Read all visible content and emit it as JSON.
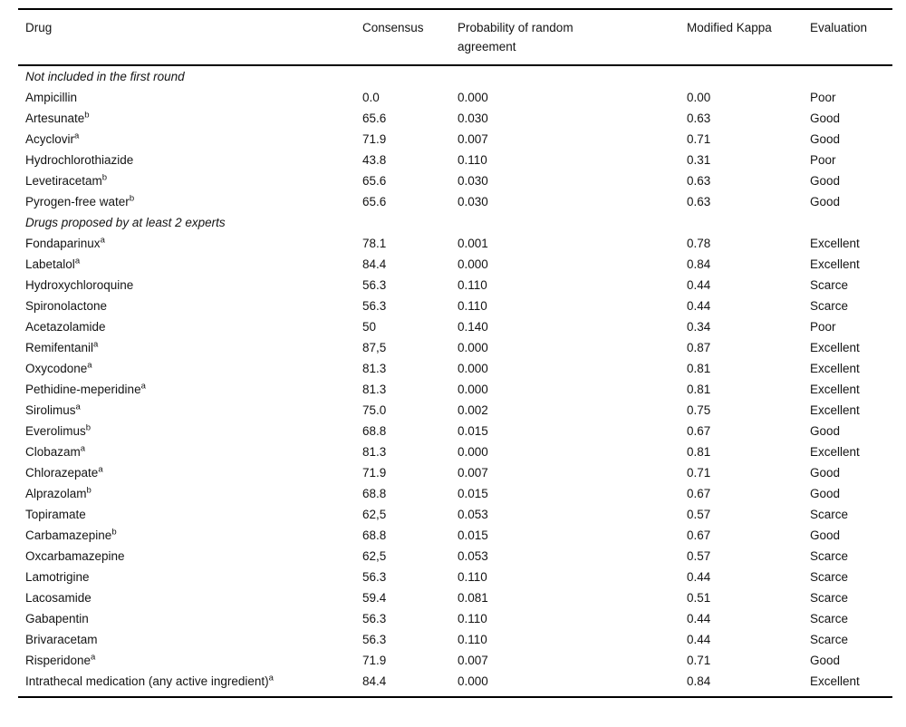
{
  "table": {
    "headers": [
      "Drug",
      "Consensus",
      "Probability of random agreement",
      "Modified Kappa",
      "Evaluation"
    ],
    "sections": [
      {
        "label": "Not included in the first round",
        "rows": [
          {
            "drug": "Ampicillin",
            "sup": "",
            "consensus": "0.0",
            "probability": "0.000",
            "kappa": "0.00",
            "evaluation": "Poor"
          },
          {
            "drug": "Artesunate",
            "sup": "b",
            "consensus": "65.6",
            "probability": "0.030",
            "kappa": "0.63",
            "evaluation": "Good"
          },
          {
            "drug": "Acyclovir",
            "sup": "a",
            "consensus": "71.9",
            "probability": "0.007",
            "kappa": "0.71",
            "evaluation": "Good"
          },
          {
            "drug": "Hydrochlorothiazide",
            "sup": "",
            "consensus": "43.8",
            "probability": "0.110",
            "kappa": "0.31",
            "evaluation": "Poor"
          },
          {
            "drug": "Levetiracetam",
            "sup": "b",
            "consensus": "65.6",
            "probability": "0.030",
            "kappa": "0.63",
            "evaluation": "Good"
          },
          {
            "drug": "Pyrogen-free water",
            "sup": "b",
            "consensus": "65.6",
            "probability": "0.030",
            "kappa": "0.63",
            "evaluation": "Good"
          }
        ]
      },
      {
        "label": "Drugs proposed by at least 2 experts",
        "rows": [
          {
            "drug": "Fondaparinux",
            "sup": "a",
            "consensus": "78.1",
            "probability": "0.001",
            "kappa": "0.78",
            "evaluation": "Excellent"
          },
          {
            "drug": "Labetalol",
            "sup": "a",
            "consensus": "84.4",
            "probability": "0.000",
            "kappa": "0.84",
            "evaluation": "Excellent"
          },
          {
            "drug": "Hydroxychloroquine",
            "sup": "",
            "consensus": "56.3",
            "probability": "0.110",
            "kappa": "0.44",
            "evaluation": "Scarce"
          },
          {
            "drug": "Spironolactone",
            "sup": "",
            "consensus": "56.3",
            "probability": "0.110",
            "kappa": "0.44",
            "evaluation": "Scarce"
          },
          {
            "drug": "Acetazolamide",
            "sup": "",
            "consensus": "50",
            "probability": "0.140",
            "kappa": "0.34",
            "evaluation": "Poor"
          },
          {
            "drug": "Remifentanil",
            "sup": "a",
            "consensus": "87,5",
            "probability": "0.000",
            "kappa": "0.87",
            "evaluation": "Excellent"
          },
          {
            "drug": "Oxycodone",
            "sup": "a",
            "consensus": "81.3",
            "probability": "0.000",
            "kappa": "0.81",
            "evaluation": "Excellent"
          },
          {
            "drug": "Pethidine-meperidine",
            "sup": "a",
            "consensus": "81.3",
            "probability": "0.000",
            "kappa": "0.81",
            "evaluation": "Excellent"
          },
          {
            "drug": "Sirolimus",
            "sup": "a",
            "consensus": "75.0",
            "probability": "0.002",
            "kappa": "0.75",
            "evaluation": "Excellent"
          },
          {
            "drug": "Everolimus",
            "sup": "b",
            "consensus": "68.8",
            "probability": "0.015",
            "kappa": "0.67",
            "evaluation": "Good"
          },
          {
            "drug": "Clobazam",
            "sup": "a",
            "consensus": "81.3",
            "probability": "0.000",
            "kappa": "0.81",
            "evaluation": "Excellent"
          },
          {
            "drug": "Chlorazepate",
            "sup": "a",
            "consensus": "71.9",
            "probability": "0.007",
            "kappa": "0.71",
            "evaluation": "Good"
          },
          {
            "drug": "Alprazolam",
            "sup": "b",
            "consensus": "68.8",
            "probability": "0.015",
            "kappa": "0.67",
            "evaluation": "Good"
          },
          {
            "drug": "Topiramate",
            "sup": "",
            "consensus": "62,5",
            "probability": "0.053",
            "kappa": "0.57",
            "evaluation": "Scarce"
          },
          {
            "drug": "Carbamazepine",
            "sup": "b",
            "consensus": "68.8",
            "probability": "0.015",
            "kappa": "0.67",
            "evaluation": "Good"
          },
          {
            "drug": "Oxcarbamazepine",
            "sup": "",
            "consensus": "62,5",
            "probability": "0.053",
            "kappa": "0.57",
            "evaluation": "Scarce"
          },
          {
            "drug": "Lamotrigine",
            "sup": "",
            "consensus": "56.3",
            "probability": "0.110",
            "kappa": "0.44",
            "evaluation": "Scarce"
          },
          {
            "drug": "Lacosamide",
            "sup": "",
            "consensus": "59.4",
            "probability": "0.081",
            "kappa": "0.51",
            "evaluation": "Scarce"
          },
          {
            "drug": "Gabapentin",
            "sup": "",
            "consensus": "56.3",
            "probability": "0.110",
            "kappa": "0.44",
            "evaluation": "Scarce"
          },
          {
            "drug": "Brivaracetam",
            "sup": "",
            "consensus": "56.3",
            "probability": "0.110",
            "kappa": "0.44",
            "evaluation": "Scarce"
          },
          {
            "drug": "Risperidone",
            "sup": "a",
            "consensus": "71.9",
            "probability": "0.007",
            "kappa": "0.71",
            "evaluation": "Good"
          },
          {
            "drug": "Intrathecal medication (any active ingredient)",
            "sup": "a",
            "consensus": "84.4",
            "probability": "0.000",
            "kappa": "0.84",
            "evaluation": "Excellent"
          }
        ]
      }
    ]
  }
}
